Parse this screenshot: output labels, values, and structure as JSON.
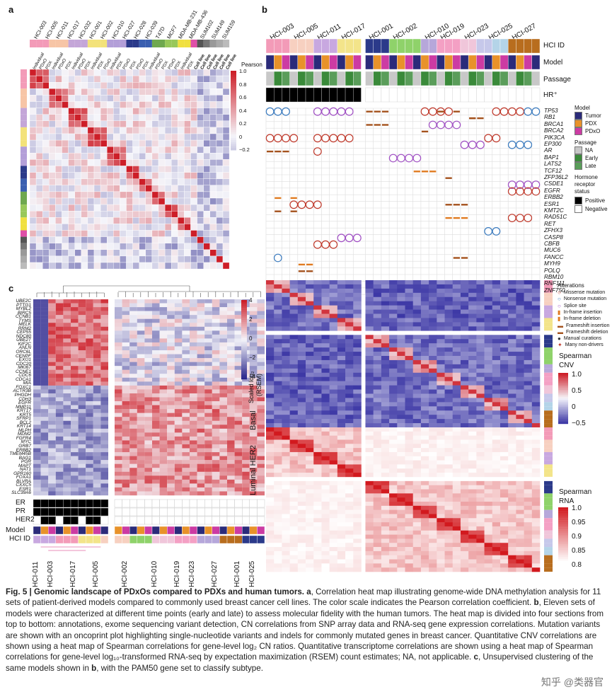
{
  "panels": {
    "a": "a",
    "b": "b",
    "c": "c"
  },
  "panel_a": {
    "col_labels": [
      "HCI-003",
      "HCI-005",
      "HCI-011",
      "HCI-017",
      "HCI-032",
      "HCI-001",
      "HCI-002",
      "HCI-010",
      "HCI-027",
      "HCI-028",
      "HCI-039",
      "T47D",
      "MCF7",
      "MDA-MB-231",
      "MDA-MB-436",
      "SUM102",
      "SUM149",
      "SUM159"
    ],
    "model_labels": [
      "Individual",
      "PDxO",
      "PDX",
      "Individual",
      "PDxO",
      "PDX",
      "Individual",
      "PDxO",
      "PDX",
      "Individual",
      "PDX",
      "PDxO",
      "Individual",
      "PDX",
      "PDxO",
      "PDX",
      "PDxO",
      "PDX",
      "Individual",
      "PDxO",
      "PDX",
      "PDxO",
      "PDX",
      "Individual",
      "PDX",
      "Cell line",
      "Cell line",
      "Cell line",
      "Cell line",
      "Cell line",
      "Cell line"
    ],
    "scale_title": "Pearson",
    "scale_ticks": [
      "1.0",
      "0.8",
      "0.6",
      "0.4",
      "0.2",
      "0",
      "−0.2"
    ]
  },
  "panel_b": {
    "hci_ids": [
      "HCI-003",
      "HCI-005",
      "HCI-011",
      "HCI-017",
      "HCI-001",
      "HCI-002",
      "HCI-010",
      "HCI-019",
      "HCI-023",
      "HCI-025",
      "HCI-027"
    ],
    "track_labels": [
      "HCI ID",
      "Model",
      "Passage",
      "HR⁺"
    ],
    "genes": [
      "TP53",
      "RB1",
      "BRCA1",
      "BRCA2",
      "PIK3CA",
      "EP300",
      "AR",
      "BAP1",
      "LATS2",
      "TCF12",
      "ZFP36L2",
      "CSDE1",
      "EGFR",
      "ERBB2",
      "ESR1",
      "KMT2C",
      "RAD51C",
      "RET",
      "ZFHX3",
      "CASP8",
      "CBFB",
      "MUC6",
      "FANCC",
      "MYH9",
      "POLQ",
      "RBM10",
      "RNF111",
      "ZNF750"
    ],
    "legend_model_title": "Model",
    "legend_model": [
      {
        "label": "Tumor",
        "color": "#2b2b7a"
      },
      {
        "label": "PDX",
        "color": "#e8922a"
      },
      {
        "label": "PDxO",
        "color": "#cc3ba3"
      }
    ],
    "legend_passage_title": "Passage",
    "legend_passage": [
      {
        "label": "NA",
        "color": "#c8c8c8"
      },
      {
        "label": "Early",
        "color": "#3a8a3a"
      },
      {
        "label": "Late",
        "color": "#5a9d5a"
      }
    ],
    "legend_hr_title": "Hormone receptor status",
    "legend_hr_title_1": "Hormone",
    "legend_hr_title_2": "receptor",
    "legend_hr_title_3": "status",
    "legend_hr": [
      {
        "label": "Positive",
        "color": "#000000"
      },
      {
        "label": "Negative",
        "color": "#ffffff"
      }
    ],
    "alterations_title": "Alterations",
    "alterations": [
      "Missense mutation",
      "Nonsense mutation",
      "Splice site",
      "In-frame insertion",
      "In-frame deletion",
      "Frameshift insertion",
      "Frameshift deletion",
      "Manual curations",
      "Many non-drivers"
    ],
    "cnv_title": "Spearman",
    "cnv_sub": "CNV",
    "cnv_ticks": [
      "1.0",
      "0.5",
      "0",
      "−0.5"
    ],
    "rna_title": "Spearman",
    "rna_sub": "RNA",
    "rna_ticks": [
      "1.0",
      "0.95",
      "0.9",
      "0.85",
      "0.8"
    ]
  },
  "panel_c": {
    "genes": [
      "UBE2C",
      "PTTG1",
      "MYBL2",
      "BIRC5",
      "CCNB1",
      "TYMS",
      "MELK",
      "RRM2",
      "CEP55",
      "NDC80",
      "UBE2T",
      "KIF2C",
      "ANLN",
      "ORC6L",
      "CENPF",
      "EXO1",
      "CDC20",
      "MKI67",
      "CCNE1",
      "CDC6",
      "CDCA1",
      "MIA",
      "FOXC1",
      "ACTR3B",
      "PHGDH",
      "CDH3",
      "EGFR",
      "MMP11",
      "KRT17",
      "KRT5",
      "SFRP1",
      "BCL2",
      "KRT14",
      "MLPH",
      "MDM2",
      "FGFR4",
      "MYC",
      "GRB7",
      "ERBB2",
      "TMEM45B",
      "BAG1",
      "PGR",
      "MAPT",
      "NAT1",
      "GPR160",
      "FOXA1",
      "BLVRA",
      "CXXC5",
      "ESR1",
      "SLC39A6"
    ],
    "scale_ticks": [
      "4",
      "2",
      "0",
      "−2",
      "−4"
    ],
    "scale_title_1": "Scaled log₂",
    "scale_title_2": "(RSEM)",
    "subtypes": [
      "Basal",
      "Luminal HER2"
    ],
    "bottom_tracks": [
      "ER",
      "PR",
      "HER2",
      "Model",
      "HCI ID"
    ],
    "x_labels": [
      "HCI-011",
      "HCI-003",
      "HCI-017",
      "HCI-005",
      "HCI-002",
      "HCI-010",
      "HCI-019",
      "HCI-023",
      "HCI-027",
      "HCI-001",
      "HCI-025"
    ]
  },
  "caption": {
    "title": "Fig. 5 | Genomic landscape of PDxOs compared to PDXs and human tumors.",
    "a_label": "a",
    "a_text": ", Correlation heat map illustrating genome-wide DNA methylation analysis for 11 sets of patient-derived models compared to commonly used breast cancer cell lines. The color scale indicates the Pearson correlation coefficient.",
    "b_label": "b",
    "b_text": ", Eleven sets of models were characterized at different time points (early and late) to assess molecular fidelity with the human tumors. The heat map is divided into four sections from top to bottom: annotations, exome sequencing variant detection, CN correlations from SNP array data and RNA-seq gene expression correlations. Mutation variants are shown with an oncoprint plot highlighting single-nucleotide variants and indels for commonly mutated genes in breast cancer. Quantitative CNV correlations are shown using a heat map of Spearman correlations for gene-level log₂ CN ratios. Quantitative transcriptome correlations are shown using a heat map of Spearman correlations for gene-level log₁₀-transformed RNA-seq by expectation maximization (RSEM) count estimates; NA, not applicable.",
    "c_label": "c",
    "c_text": ", Unsupervised clustering of the same models shown in",
    "c_ref": "b",
    "c_tail": ", with the PAM50 gene set to classify subtype."
  },
  "watermark": "知乎 @类器官"
}
